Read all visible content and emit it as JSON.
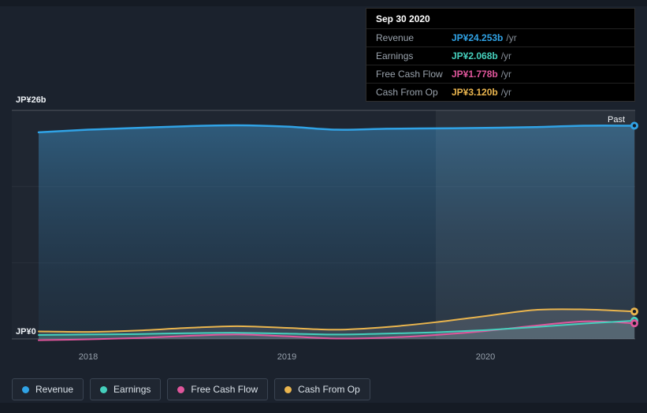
{
  "tooltip": {
    "date": "Sep 30 2020",
    "rows": [
      {
        "label": "Revenue",
        "value": "JP¥24.253b",
        "suffix": "/yr",
        "color": "#30a3e6"
      },
      {
        "label": "Earnings",
        "value": "JP¥2.068b",
        "suffix": "/yr",
        "color": "#45d0bd"
      },
      {
        "label": "Free Cash Flow",
        "value": "JP¥1.778b",
        "suffix": "/yr",
        "color": "#e0569c"
      },
      {
        "label": "Cash From Op",
        "value": "JP¥3.120b",
        "suffix": "/yr",
        "color": "#eab54e"
      }
    ]
  },
  "axes": {
    "y_top_label": "JP¥26b",
    "y_zero_label": "JP¥0",
    "x_ticks": [
      "2018",
      "2019",
      "2020"
    ],
    "past_label": "Past"
  },
  "legend": [
    {
      "label": "Revenue"
    },
    {
      "label": "Earnings"
    },
    {
      "label": "Free Cash Flow"
    },
    {
      "label": "Cash From Op"
    }
  ],
  "chart_data": {
    "type": "area",
    "title": "",
    "xlabel": "",
    "ylabel": "JP¥ billions",
    "ylim": [
      0,
      26
    ],
    "x_tick_years": [
      2018,
      2019,
      2020
    ],
    "past_region_start_x": 2019.75,
    "x": [
      2017.75,
      2018.0,
      2018.25,
      2018.5,
      2018.75,
      2019.0,
      2019.25,
      2019.5,
      2019.75,
      2020.0,
      2020.25,
      2020.5,
      2020.75
    ],
    "series": [
      {
        "name": "Revenue",
        "color": "#30a3e6",
        "values": [
          23.5,
          23.8,
          24.0,
          24.2,
          24.3,
          24.15,
          23.8,
          23.9,
          23.95,
          24.0,
          24.1,
          24.25,
          24.253
        ]
      },
      {
        "name": "Earnings",
        "color": "#45d0bd",
        "values": [
          0.45,
          0.5,
          0.55,
          0.65,
          0.7,
          0.6,
          0.5,
          0.6,
          0.75,
          1.0,
          1.35,
          1.75,
          2.068
        ]
      },
      {
        "name": "Free Cash Flow",
        "color": "#e0569c",
        "values": [
          -0.15,
          -0.05,
          0.1,
          0.35,
          0.5,
          0.3,
          0.05,
          0.15,
          0.45,
          0.9,
          1.5,
          2.0,
          1.778
        ]
      },
      {
        "name": "Cash From Op",
        "color": "#eab54e",
        "values": [
          0.85,
          0.8,
          0.95,
          1.25,
          1.45,
          1.25,
          1.05,
          1.35,
          1.9,
          2.6,
          3.3,
          3.35,
          3.12
        ]
      }
    ],
    "latest_values": {
      "date": "Sep 30 2020",
      "revenue": 24.253,
      "earnings": 2.068,
      "free_cash_flow": 1.778,
      "cash_from_op": 3.12
    }
  }
}
